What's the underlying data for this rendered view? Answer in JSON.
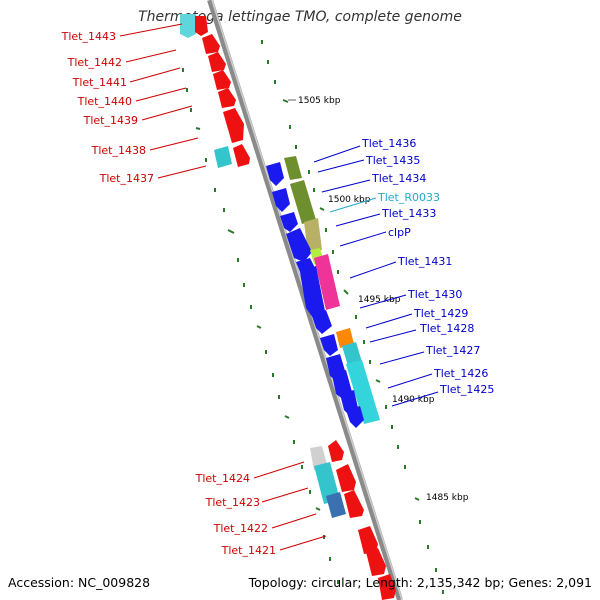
{
  "title": "Thermotoga lettingae TMO, complete genome",
  "accession": "Accession: NC_009828",
  "topology": "Topology: circular; Length: 2,135,342 bp; Genes: 2,091",
  "colors": {
    "left_labels": "#cc0000",
    "right_labels": "#0000cc",
    "trna_label": "#22aacc",
    "backbone": "#8a8a8a",
    "ticks": "#2a7a2a"
  },
  "scale_markers": [
    "1505 kbp",
    "1500 kbp",
    "1495 kbp",
    "1490 kbp",
    "1485 kbp"
  ],
  "left_genes": [
    "Tlet_1443",
    "Tlet_1442",
    "Tlet_1441",
    "Tlet_1440",
    "Tlet_1439",
    "Tlet_1438",
    "Tlet_1437",
    "Tlet_1424",
    "Tlet_1423",
    "Tlet_1422",
    "Tlet_1421"
  ],
  "right_genes": [
    "Tlet_1436",
    "Tlet_1435",
    "Tlet_1434",
    "Tlet_R0033",
    "Tlet_1433",
    "clpP",
    "Tlet_1431",
    "Tlet_1430",
    "Tlet_1429",
    "Tlet_1428",
    "Tlet_1427",
    "Tlet_1426",
    "Tlet_1425"
  ]
}
